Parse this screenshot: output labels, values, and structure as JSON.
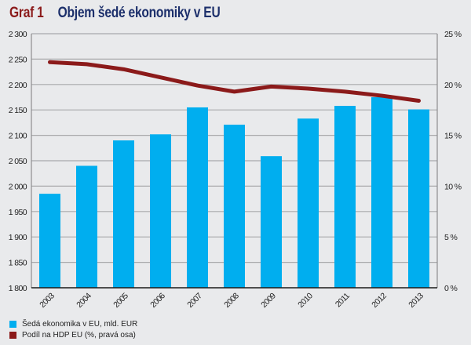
{
  "header": {
    "graph_number": "Graf 1",
    "title": "Objem šedé ekonomiky v EU"
  },
  "chart_data": {
    "type": "bar",
    "title": "Objem šedé ekonomiky v EU",
    "categories": [
      "2003",
      "2004",
      "2005",
      "2006",
      "2007",
      "2008",
      "2009",
      "2010",
      "2011",
      "2012",
      "2013"
    ],
    "series": [
      {
        "name": "Šedá ekonomika v EU, mld. EUR",
        "type": "bar",
        "axis": "left",
        "color": "#00aeef",
        "values": [
          1985,
          2040,
          2090,
          2102,
          2155,
          2121,
          2059,
          2133,
          2158,
          2175,
          2151
        ]
      },
      {
        "name": "Podíl na HDP EU (%, pravá osa)",
        "type": "line",
        "axis": "right",
        "color": "#8b1a1a",
        "values": [
          22.2,
          22.0,
          21.5,
          20.7,
          19.9,
          19.3,
          19.8,
          19.6,
          19.3,
          18.9,
          18.4
        ]
      }
    ],
    "y_left": {
      "min": 1800,
      "max": 2300,
      "ticks": [
        1800,
        1850,
        1900,
        1950,
        2000,
        2050,
        2100,
        2150,
        2200,
        2250,
        2300
      ],
      "tick_labels": [
        "1 800",
        "1 850",
        "1 900",
        "1 950",
        "2 000",
        "2 050",
        "2 100",
        "2 150",
        "2 200",
        "2 250",
        "2 300"
      ]
    },
    "y_right": {
      "min": 0,
      "max": 25,
      "ticks": [
        0,
        5,
        10,
        15,
        20,
        25
      ],
      "tick_labels": [
        "0 %",
        "5 %",
        "10 %",
        "15 %",
        "20 %",
        "25 %"
      ]
    },
    "xlabel": "",
    "ylabel": "",
    "grid": true,
    "legend_position": "bottom-left"
  }
}
